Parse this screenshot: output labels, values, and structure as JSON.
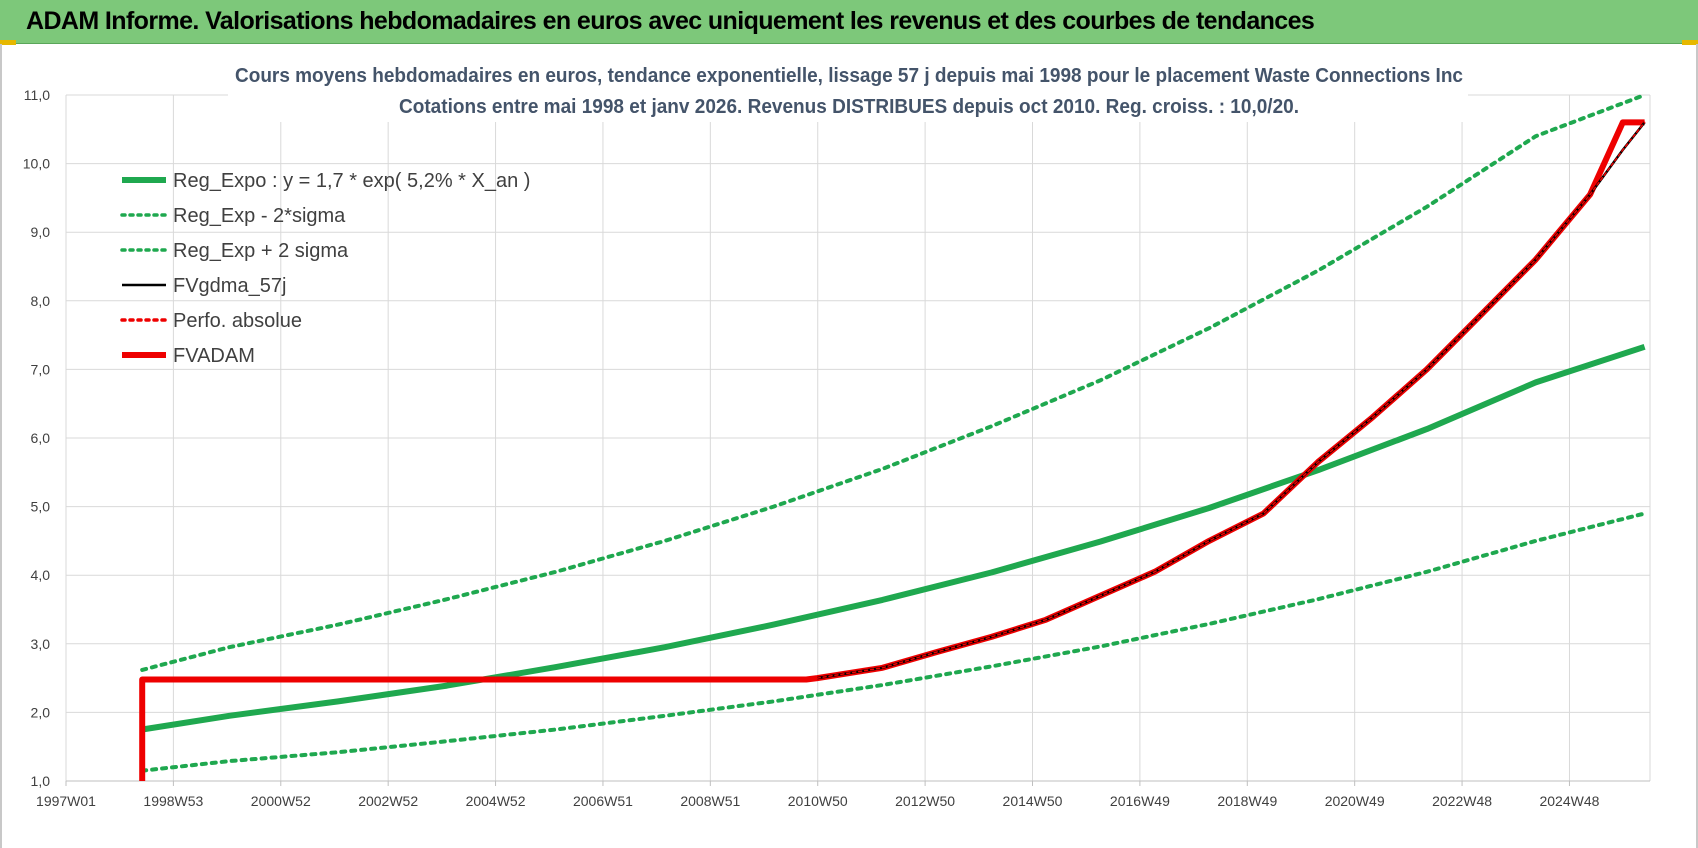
{
  "banner": {
    "title": "ADAM Informe. Valorisations hebdomadaires en euros avec uniquement les revenus et des courbes de tendances"
  },
  "colors": {
    "banner_bg": "#7dc87a",
    "reg_green": "#1fa84f",
    "red": "#ee0000",
    "black": "#000000",
    "title_color": "#44546a"
  },
  "chart_data": {
    "type": "line",
    "title_lines": [
      "Cours moyens hebdomadaires en euros, tendance exponentielle, lissage 57 j depuis mai 1998 pour le placement Waste Connections Inc",
      "Cotations entre mai 1998 et janv 2026. Revenus DISTRIBUES depuis oct 2010. Reg. croiss. : 10,0/20."
    ],
    "xlabel": "",
    "ylabel": "",
    "x_tick_labels": [
      "1997W01",
      "1998W53",
      "2000W52",
      "2002W52",
      "2004W52",
      "2006W51",
      "2008W51",
      "2010W50",
      "2012W50",
      "2014W50",
      "2016W49",
      "2018W49",
      "2020W49",
      "2022W48",
      "2024W48"
    ],
    "x_range": [
      1997.0,
      2026.1
    ],
    "ylim": [
      1.0,
      11.0
    ],
    "y_ticks": [
      "1,0",
      "2,0",
      "3,0",
      "4,0",
      "5,0",
      "6,0",
      "7,0",
      "8,0",
      "9,0",
      "10,0",
      "11,0"
    ],
    "grid": true,
    "legend_position": "top-left",
    "legend": [
      {
        "label": "Reg_Expo : y = 1,7 * exp( 5,2% *  X_an )",
        "style": "solid-thick",
        "color": "#1fa84f"
      },
      {
        "label": "Reg_Exp - 2*sigma",
        "style": "dotted",
        "color": "#1fa84f"
      },
      {
        "label": "Reg_Exp + 2 sigma",
        "style": "dotted",
        "color": "#1fa84f"
      },
      {
        "label": "FVgdma_57j",
        "style": "solid",
        "color": "#000000"
      },
      {
        "label": "Perfo. absolue",
        "style": "dotted",
        "color": "#ee0000"
      },
      {
        "label": "FVADAM",
        "style": "solid-thick",
        "color": "#ee0000"
      }
    ],
    "series": [
      {
        "name": "Reg_Expo : y = 1,7 * exp( 5,2% *  X_an )",
        "x": [
          1998.4,
          2000,
          2002,
          2004,
          2006,
          2008,
          2010,
          2012,
          2014,
          2016,
          2018,
          2020,
          2022,
          2024,
          2026
        ],
        "y": [
          1.75,
          1.95,
          2.16,
          2.39,
          2.66,
          2.95,
          3.28,
          3.64,
          4.04,
          4.49,
          4.98,
          5.53,
          6.13,
          6.81,
          7.33
        ]
      },
      {
        "name": "Reg_Exp - 2*sigma",
        "x": [
          1998.4,
          2000,
          2002,
          2004,
          2006,
          2008,
          2010,
          2012,
          2014,
          2016,
          2018,
          2020,
          2022,
          2024,
          2026
        ],
        "y": [
          1.15,
          1.29,
          1.42,
          1.58,
          1.75,
          1.95,
          2.16,
          2.4,
          2.67,
          2.96,
          3.29,
          3.65,
          4.05,
          4.5,
          4.9
        ]
      },
      {
        "name": "Reg_Exp + 2 sigma",
        "x": [
          1998.4,
          2000,
          2002,
          2004,
          2006,
          2008,
          2010,
          2012,
          2014,
          2016,
          2018,
          2020,
          2022,
          2024,
          2026
        ],
        "y": [
          2.62,
          2.95,
          3.28,
          3.65,
          4.05,
          4.5,
          5.0,
          5.55,
          6.17,
          6.84,
          7.6,
          8.44,
          9.37,
          10.4,
          11.0
        ]
      },
      {
        "name": "FVgdma_57j",
        "x": [
          2010.8,
          2012,
          2013,
          2014,
          2015,
          2016,
          2017,
          2018,
          2019,
          2020,
          2021,
          2022,
          2023,
          2024,
          2025,
          2025.6,
          2026.0
        ],
        "y": [
          2.5,
          2.65,
          2.88,
          3.1,
          3.35,
          3.7,
          4.05,
          4.5,
          4.9,
          5.65,
          6.3,
          7.0,
          7.8,
          8.6,
          9.55,
          10.2,
          10.6
        ]
      },
      {
        "name": "Perfo. absolue",
        "x": [
          2010.8,
          2012,
          2013,
          2014,
          2015,
          2016,
          2017,
          2018,
          2019,
          2020,
          2021,
          2022,
          2023,
          2024,
          2025,
          2025.6,
          2026.0
        ],
        "y": [
          2.5,
          2.65,
          2.88,
          3.1,
          3.35,
          3.7,
          4.05,
          4.5,
          4.9,
          5.65,
          6.3,
          7.0,
          7.8,
          8.6,
          9.55,
          10.2,
          10.6
        ]
      },
      {
        "name": "FVADAM",
        "x": [
          1998.4,
          1998.4,
          2010.6,
          2010.8,
          2012,
          2013,
          2014,
          2015,
          2016,
          2017,
          2018,
          2019,
          2020,
          2021,
          2022,
          2023,
          2024,
          2025,
          2025.6,
          2026.0
        ],
        "y": [
          1.0,
          2.48,
          2.48,
          2.5,
          2.65,
          2.88,
          3.1,
          3.35,
          3.7,
          4.05,
          4.5,
          4.9,
          5.65,
          6.3,
          7.0,
          7.8,
          8.6,
          9.55,
          10.6,
          10.6
        ]
      }
    ]
  }
}
